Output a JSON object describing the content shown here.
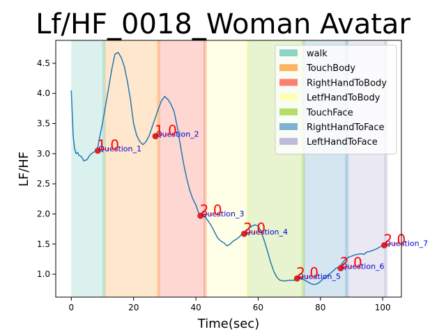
{
  "chart_data": {
    "type": "line",
    "title": "Lf/HF_0018_Woman Avatar",
    "xlabel": "Time(sec)",
    "ylabel": "LF/HF",
    "xlim": [
      -5,
      106
    ],
    "ylim": [
      0.62,
      4.88
    ],
    "xticks": [
      0,
      20,
      40,
      60,
      80,
      100
    ],
    "yticks": [
      1.0,
      1.5,
      2.0,
      2.5,
      3.0,
      3.5,
      4.0,
      4.5
    ],
    "grid": false,
    "legend_position": "top-right",
    "line_color": "#1f77b4",
    "regions": [
      {
        "name": "walk",
        "color": "#8dd3c7",
        "ranges": [
          [
            0,
            10.5
          ]
        ]
      },
      {
        "name": "TouchBody",
        "color": "#fdb462",
        "ranges": [
          [
            10.5,
            28
          ]
        ]
      },
      {
        "name": "RightHandToBody",
        "color": "#fb8072",
        "ranges": [
          [
            28,
            43
          ]
        ]
      },
      {
        "name": "LetfHandToBody",
        "color": "#ffffb3",
        "ranges": [
          [
            43,
            56.5
          ]
        ]
      },
      {
        "name": "TouchFace",
        "color": "#b3de69",
        "ranges": [
          [
            56.5,
            74.5
          ]
        ]
      },
      {
        "name": "RightHandToFace",
        "color": "#80b1d3",
        "ranges": [
          [
            74.5,
            88.5
          ]
        ]
      },
      {
        "name": "LeftHandToFace",
        "color": "#bebada",
        "ranges": [
          [
            88.5,
            101
          ]
        ]
      }
    ],
    "series": [
      {
        "x": [
          0,
          0.3,
          0.6,
          1,
          1.5,
          2,
          2.5,
          3,
          3.5,
          4,
          5,
          6,
          7,
          8,
          8.5,
          9,
          10,
          11,
          12,
          13,
          14,
          15,
          16,
          17,
          18,
          19,
          20,
          21,
          22,
          23,
          24,
          25,
          26,
          27,
          28,
          29,
          30,
          31,
          32,
          33,
          34,
          35,
          36,
          37,
          38,
          39,
          40,
          41,
          42,
          43,
          44,
          45,
          46,
          47,
          48,
          49,
          50,
          51,
          52,
          53,
          54,
          55,
          56,
          57,
          58,
          59,
          60,
          61,
          62,
          63,
          64,
          65,
          66,
          67,
          68,
          69,
          70,
          71,
          72,
          73,
          74,
          75,
          76,
          77,
          78,
          79,
          80,
          81,
          82,
          83,
          84,
          85,
          86,
          87,
          88,
          89,
          90,
          91,
          92,
          93,
          94,
          95,
          96,
          97,
          98,
          99,
          100
        ],
        "y": [
          4.05,
          3.65,
          3.3,
          3.1,
          3.0,
          3.02,
          2.97,
          2.96,
          2.93,
          2.88,
          2.9,
          2.98,
          3.02,
          3.05,
          3.1,
          3.25,
          3.5,
          3.8,
          4.1,
          4.4,
          4.65,
          4.68,
          4.6,
          4.45,
          4.2,
          3.9,
          3.5,
          3.3,
          3.2,
          3.15,
          3.2,
          3.3,
          3.45,
          3.6,
          3.75,
          3.88,
          3.95,
          3.9,
          3.82,
          3.7,
          3.45,
          3.15,
          2.85,
          2.6,
          2.4,
          2.25,
          2.15,
          2.0,
          1.97,
          1.95,
          1.88,
          1.8,
          1.7,
          1.6,
          1.55,
          1.52,
          1.47,
          1.5,
          1.55,
          1.58,
          1.62,
          1.68,
          1.72,
          1.76,
          1.8,
          1.82,
          1.8,
          1.7,
          1.55,
          1.38,
          1.2,
          1.05,
          0.95,
          0.9,
          0.89,
          0.89,
          0.9,
          0.9,
          0.9,
          0.93,
          0.93,
          0.9,
          0.87,
          0.84,
          0.83,
          0.84,
          0.88,
          0.93,
          0.97,
          1.01,
          1.05,
          1.1,
          1.12,
          1.18,
          1.25,
          1.28,
          1.3,
          1.32,
          1.33,
          1.34,
          1.33,
          1.37,
          1.38,
          1.4,
          1.42,
          1.45,
          1.48
        ]
      }
    ],
    "questions": [
      {
        "label": "Question_1",
        "x": 8.5,
        "y": 3.05,
        "score": "1.0"
      },
      {
        "label": "Question_2",
        "x": 27,
        "y": 3.29,
        "score": "1.0"
      },
      {
        "label": "Question_3",
        "x": 41.5,
        "y": 1.97,
        "score": "2.0"
      },
      {
        "label": "Question_4",
        "x": 55.5,
        "y": 1.67,
        "score": "2.0"
      },
      {
        "label": "Question_5",
        "x": 72.5,
        "y": 0.93,
        "score": "2.0"
      },
      {
        "label": "Question_6",
        "x": 86.5,
        "y": 1.1,
        "score": "2.0"
      },
      {
        "label": "Question_7",
        "x": 100.5,
        "y": 1.48,
        "score": "2.0"
      }
    ]
  }
}
